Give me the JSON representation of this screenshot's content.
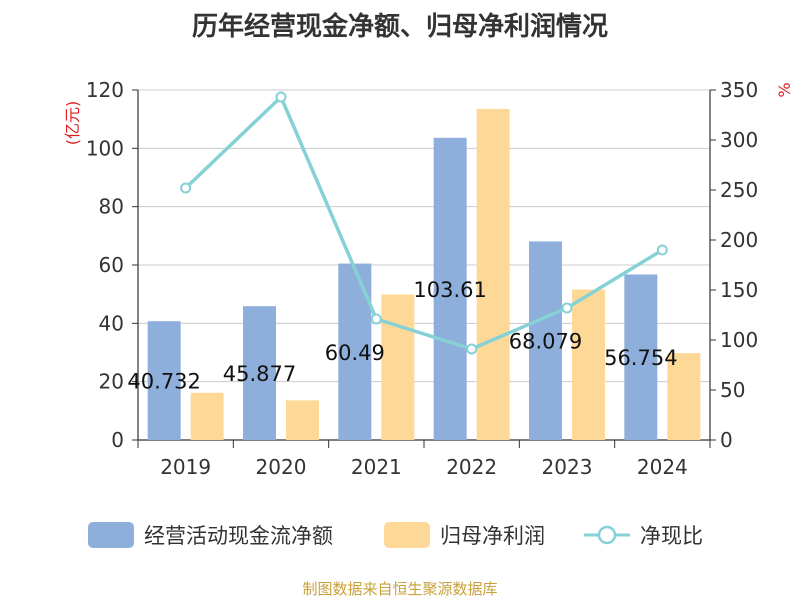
{
  "chart_data": {
    "type": "bar",
    "title": "历年经营现金净额、归母净利润情况",
    "categories": [
      "2019",
      "2020",
      "2021",
      "2022",
      "2023",
      "2024"
    ],
    "series": [
      {
        "name": "经营活动现金流净额",
        "kind": "bar",
        "axis": "left",
        "color": "#8eaedb",
        "values": [
          40.732,
          45.877,
          60.49,
          103.61,
          68.079,
          56.754
        ],
        "labels": [
          "40.732",
          "45.877",
          "60.49",
          "103.61",
          "68.079",
          "56.754"
        ]
      },
      {
        "name": "归母净利润",
        "kind": "bar",
        "axis": "left",
        "color": "#fed897",
        "values": [
          16.2,
          13.6,
          49.9,
          113.5,
          51.6,
          29.8
        ]
      },
      {
        "name": "净现比",
        "kind": "line",
        "axis": "right",
        "color": "#85d1d6",
        "values": [
          252,
          343,
          121,
          91,
          132,
          190
        ]
      }
    ],
    "y_left": {
      "label": "(亿元)",
      "min": 0,
      "max": 120,
      "ticks": [
        0,
        20,
        40,
        60,
        80,
        100,
        120
      ]
    },
    "y_right": {
      "label": "%",
      "min": 0,
      "max": 350,
      "ticks": [
        0,
        50,
        100,
        150,
        200,
        250,
        300,
        350
      ]
    },
    "grid": true,
    "legend_position": "bottom",
    "source": "制图数据来自恒生聚源数据库"
  }
}
